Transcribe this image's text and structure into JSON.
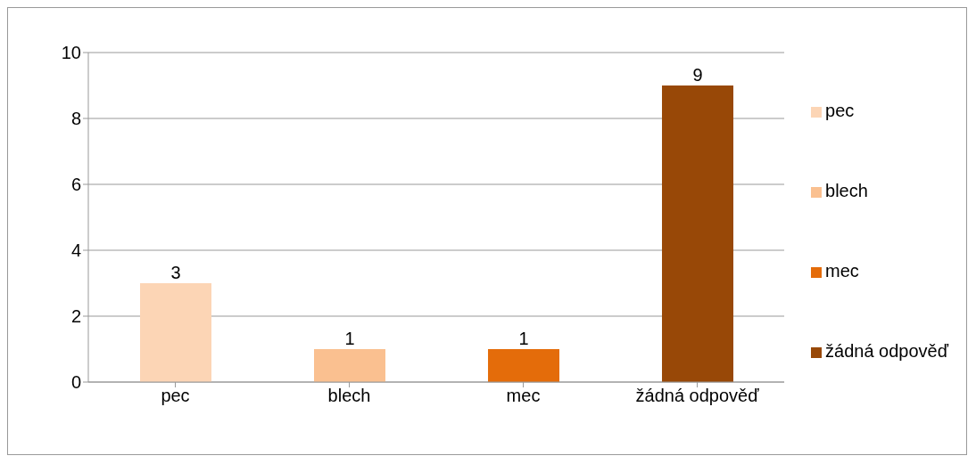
{
  "chart_data": {
    "type": "bar",
    "categories": [
      "pec",
      "blech",
      "mec",
      "žádná odpověď"
    ],
    "series": [
      {
        "name": "pec",
        "color": "#fcd5b5",
        "values": [
          3,
          null,
          null,
          null
        ]
      },
      {
        "name": "blech",
        "color": "#fac090",
        "values": [
          null,
          1,
          null,
          null
        ]
      },
      {
        "name": "mec",
        "color": "#e46c0a",
        "values": [
          null,
          null,
          1,
          null
        ]
      },
      {
        "name": "žádná odpověď",
        "color": "#984807",
        "values": [
          null,
          null,
          null,
          9
        ]
      }
    ],
    "stacked": true,
    "ylim": [
      0,
      10
    ],
    "yticks": [
      0,
      2,
      4,
      6,
      8,
      10
    ],
    "grid": "y",
    "legend": "right",
    "data_labels": true
  }
}
